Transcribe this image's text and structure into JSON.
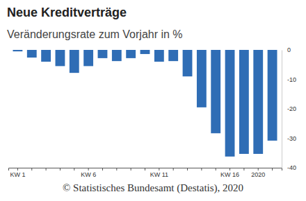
{
  "chart_data": {
    "type": "bar",
    "title": "Neue Kreditverträge",
    "subtitle": "Veränderungsrate zum Vorjahr in %",
    "source": "© Statistisches Bundesamt (Destatis), 2020",
    "categories": [
      "KW 1",
      null,
      null,
      null,
      null,
      "KW 6",
      null,
      null,
      null,
      null,
      "KW 11",
      null,
      null,
      null,
      null,
      "KW 16",
      null,
      "2020",
      null
    ],
    "values": [
      -0.5,
      -2.6,
      -4,
      -5.5,
      -7.8,
      -5.5,
      -2.8,
      -3.8,
      -2.8,
      -1.4,
      -4,
      -3.8,
      -9,
      -19.5,
      -28.3,
      -36.2,
      -35.3,
      -35.3,
      -30.8
    ],
    "color": "#2f6db5",
    "ylim": [
      -40,
      0
    ],
    "yticks": [
      0,
      -10,
      -20,
      -30,
      -40
    ],
    "grid": false
  }
}
